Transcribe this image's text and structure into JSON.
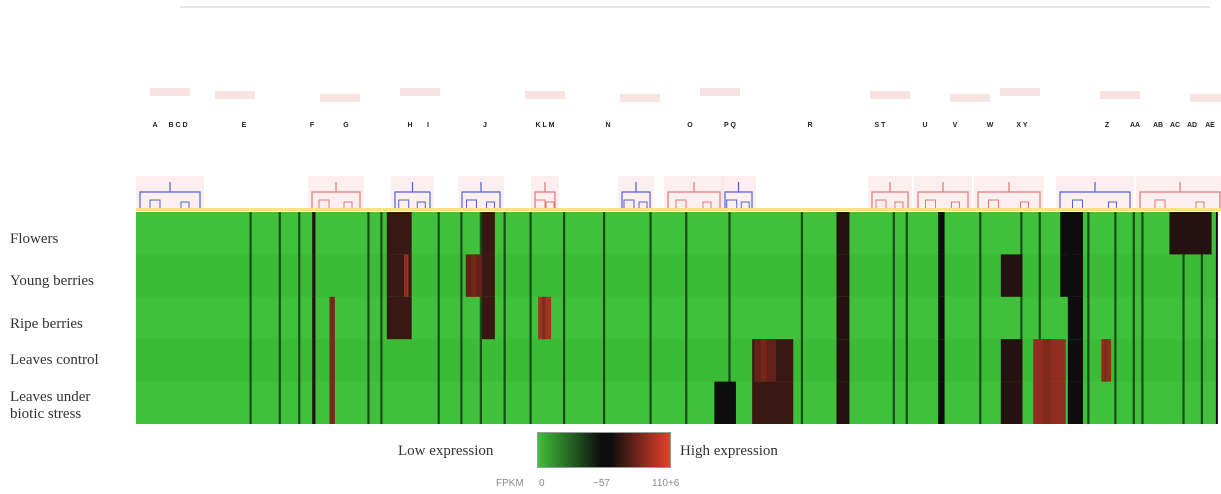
{
  "chart_data": {
    "type": "heatmap",
    "title": "",
    "rows": [
      "Flowers",
      "Young berries",
      "Ripe berries",
      "Leaves control",
      "Leaves under\nbiotic stress"
    ],
    "cluster_labels": [
      "A",
      "B C D",
      "E",
      "F",
      "G",
      "H",
      "I",
      "J",
      "K L M",
      "N",
      "O",
      "P Q",
      "R",
      "S T",
      "U",
      "V",
      "W",
      "X Y",
      "Z",
      "AA",
      "AB",
      "AC",
      "AD",
      "AE"
    ],
    "legend": {
      "low_label": "Low expression",
      "high_label": "High expression",
      "scale_title": "FPKM",
      "scale_ticks": [
        "0",
        "~57",
        "110+6"
      ],
      "colors": [
        "#3fbf3a",
        "#0d0d0d",
        "#e8402c"
      ]
    },
    "hot_blocks": [
      {
        "column_range": [
          0.163,
          0.166
        ],
        "rows": [
          0,
          1,
          2,
          3,
          4
        ],
        "level": 0.55
      },
      {
        "column_range": [
          0.179,
          0.184
        ],
        "rows": [
          2,
          3,
          4
        ],
        "level": 0.75
      },
      {
        "column_range": [
          0.232,
          0.255
        ],
        "rows": [
          0,
          1,
          2
        ],
        "level": 0.6
      },
      {
        "column_range": [
          0.248,
          0.252
        ],
        "rows": [
          1
        ],
        "level": 0.85
      },
      {
        "column_range": [
          0.305,
          0.322
        ],
        "rows": [
          1
        ],
        "level": 0.7
      },
      {
        "column_range": [
          0.32,
          0.332
        ],
        "rows": [
          0,
          1,
          2
        ],
        "level": 0.6
      },
      {
        "column_range": [
          0.372,
          0.384
        ],
        "rows": [
          2
        ],
        "level": 0.85
      },
      {
        "column_range": [
          0.57,
          0.608
        ],
        "rows": [
          3,
          4
        ],
        "level": 0.6
      },
      {
        "column_range": [
          0.572,
          0.592
        ],
        "rows": [
          3
        ],
        "level": 0.7
      },
      {
        "column_range": [
          0.535,
          0.555
        ],
        "rows": [
          4
        ],
        "level": 0.5
      },
      {
        "column_range": [
          0.648,
          0.66
        ],
        "rows": [
          0,
          1,
          2,
          3,
          4
        ],
        "level": 0.55
      },
      {
        "column_range": [
          0.742,
          0.748
        ],
        "rows": [
          0,
          1,
          2,
          3,
          4
        ],
        "level": 0.5
      },
      {
        "column_range": [
          0.8,
          0.82
        ],
        "rows": [
          1,
          3,
          4
        ],
        "level": 0.55
      },
      {
        "column_range": [
          0.83,
          0.86
        ],
        "rows": [
          3,
          4
        ],
        "level": 0.8
      },
      {
        "column_range": [
          0.862,
          0.876
        ],
        "rows": [
          0,
          1,
          2,
          3,
          4
        ],
        "level": 0.5
      },
      {
        "column_range": [
          0.893,
          0.902
        ],
        "rows": [
          3
        ],
        "level": 0.8
      },
      {
        "column_range": [
          0.855,
          0.868
        ],
        "rows": [
          0,
          1
        ],
        "level": 0.5
      },
      {
        "column_range": [
          0.956,
          0.995
        ],
        "rows": [
          0
        ],
        "level": 0.55
      },
      {
        "column_range": [
          0.999,
          1.0
        ],
        "rows": [
          0,
          1,
          2,
          3,
          4
        ],
        "level": 0.5
      }
    ],
    "column_stripes": [
      0.105,
      0.132,
      0.15,
      0.214,
      0.226,
      0.279,
      0.3,
      0.318,
      0.34,
      0.364,
      0.395,
      0.432,
      0.475,
      0.508,
      0.548,
      0.615,
      0.7,
      0.712,
      0.78,
      0.818,
      0.835,
      0.88,
      0.905,
      0.922,
      0.93,
      0.968,
      0.985
    ]
  }
}
